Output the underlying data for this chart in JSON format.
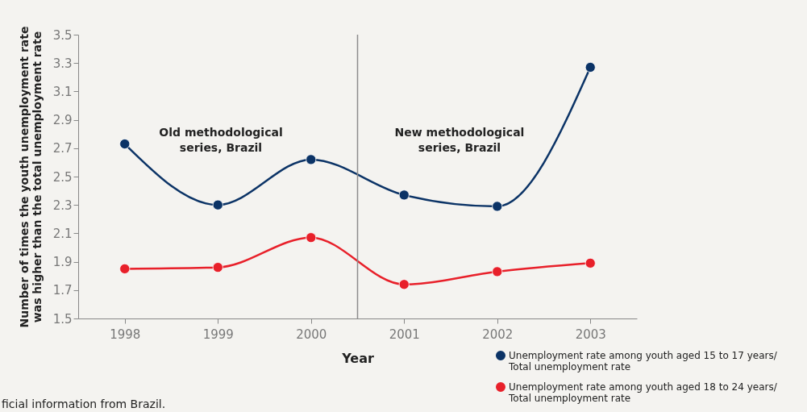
{
  "chart_data": {
    "type": "line",
    "x": [
      1998,
      1999,
      2000,
      2001,
      2002,
      2003
    ],
    "xlabel": "Year",
    "ylabel": "Number of times the youth unemployment rate was higher than the total unemployment rate",
    "xlim": [
      1997.5,
      2003.5
    ],
    "xticks": [
      1998,
      1999,
      2000,
      2001,
      2002,
      2003
    ],
    "ylim": [
      1.5,
      3.5
    ],
    "yticks": [
      1.5,
      1.7,
      1.9,
      2.1,
      2.3,
      2.5,
      2.7,
      2.9,
      3.1,
      3.3,
      3.5
    ],
    "series": [
      {
        "name": "Unemployment rate among youth aged 15 to 17 years/ Total unemployment rate",
        "color": "#0b3366",
        "values": [
          2.73,
          2.3,
          2.62,
          2.37,
          2.29,
          3.27
        ]
      },
      {
        "name": "Unemployment rate among youth aged 18 to 24 years/ Total unemployment rate",
        "color": "#e8202a",
        "values": [
          1.85,
          1.86,
          2.07,
          1.74,
          1.83,
          1.89
        ]
      }
    ],
    "ref_lines": [
      {
        "axis": "x",
        "value": 2000.5,
        "color": "#8c8c8c"
      }
    ],
    "annotations": [
      "Old methodological series, Brazil",
      "New methodological series, Brazil",
      "ficial information from Brazil."
    ],
    "marker": "circle",
    "line_style": "solid",
    "grid": false,
    "legend": "bottom right"
  }
}
